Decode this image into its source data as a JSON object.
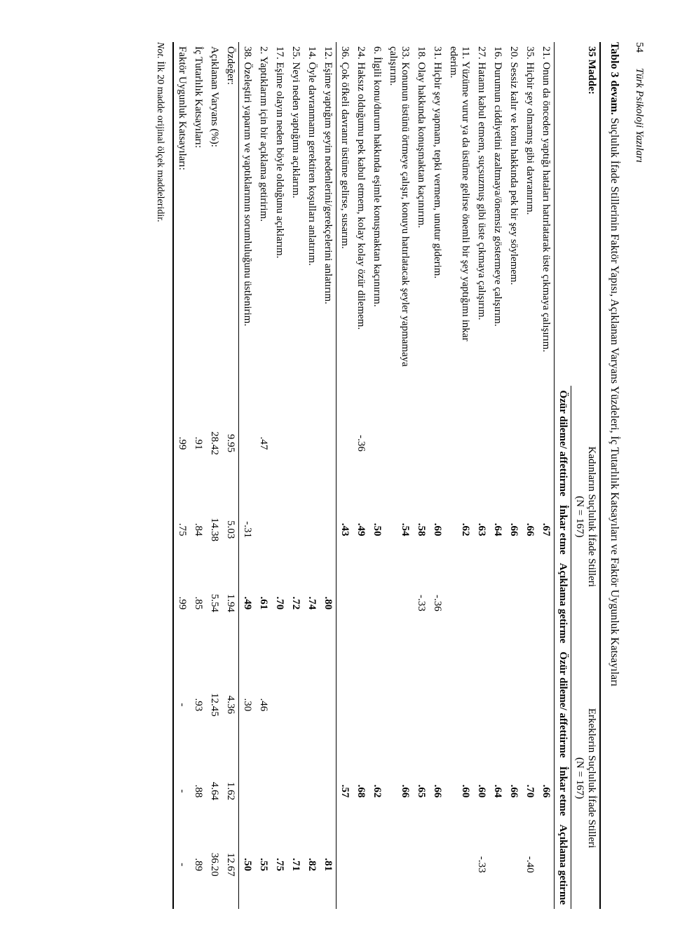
{
  "page": {
    "num": "54",
    "journal": "Türk Psikoloji Yazıları"
  },
  "caption": {
    "label": "Tablo 3 devam.",
    "text": "Suçluluk İfade Stillerinin Faktör Yapısı, Açıklanan Varyans Yüzdeleri, İç Tutarlılık Katsayıları ve Faktör Uygunluk Katsayıları"
  },
  "header": {
    "items_label": "35 Madde:",
    "group_women": "Kadınların Suçluluk İfade Stilleri",
    "group_women_n": "(N = 167)",
    "group_men": "Erkeklerin Suçluluk İfade Stilleri",
    "group_men_n": "(N = 167)",
    "c1": "Özür dileme/ affettirme",
    "c2": "İnkar etme",
    "c3": "Açıklama getirme",
    "c4": "Özür dileme/ affettirme",
    "c5": "İnkar etme",
    "c6": "Açıklama getirme"
  },
  "items_block1": [
    {
      "t": "21. Onun da önceden yaptığı hataları hatırlatarak üste çıkmaya çalışırım.",
      "v": [
        "",
        ".67",
        "",
        "",
        ".66",
        ""
      ],
      "b": [
        0,
        1,
        0,
        0,
        1,
        0
      ]
    },
    {
      "t": "35. Hiçbir şey olmamış gibi davranırım.",
      "v": [
        "",
        ".66",
        "",
        "",
        ".70",
        "-.40"
      ],
      "b": [
        0,
        1,
        0,
        0,
        1,
        0
      ]
    },
    {
      "t": "20. Sessiz kalır ve konu hakkında pek bir şey söylemem.",
      "v": [
        "",
        ".66",
        "",
        "",
        ".66",
        ""
      ],
      "b": [
        0,
        1,
        0,
        0,
        1,
        0
      ]
    },
    {
      "t": "16. Durumun ciddiyetini azaltmaya/önemsiz göstermeye çalışırım.",
      "v": [
        "",
        ".64",
        "",
        "",
        ".64",
        ""
      ],
      "b": [
        0,
        1,
        0,
        0,
        1,
        0
      ]
    },
    {
      "t": "27. Hatamı kabul etmem, suçsuzmuş gibi üste çıkmaya çalışırım.",
      "v": [
        "",
        ".63",
        "",
        "",
        ".60",
        "-.33"
      ],
      "b": [
        0,
        1,
        0,
        0,
        1,
        0
      ]
    },
    {
      "t": "11. Yüzüme vurur ya da üstüme gelirse önemli bir şey yaptığımı inkar ederim.",
      "v": [
        "",
        ".62",
        "",
        "",
        ".60",
        ""
      ],
      "b": [
        0,
        1,
        0,
        0,
        1,
        0
      ]
    },
    {
      "t": "31. Hiçbir şey yapmam, tepki vermem, unutur giderim.",
      "v": [
        "",
        ".60",
        "-.36",
        "",
        ".66",
        ""
      ],
      "b": [
        0,
        1,
        0,
        0,
        1,
        0
      ]
    },
    {
      "t": "18. Olay hakkında konuşmaktan kaçınırım.",
      "v": [
        "",
        ".58",
        "-.33",
        "",
        ".65",
        ""
      ],
      "b": [
        0,
        1,
        0,
        0,
        1,
        0
      ]
    },
    {
      "t": "33. Konunun üstünü örtmeye çalışır, konuyu hatırlatacak şeyler yapmamaya çalışırım.",
      "v": [
        "",
        ".54",
        "",
        "",
        ".66",
        ""
      ],
      "b": [
        0,
        1,
        0,
        0,
        1,
        0
      ]
    },
    {
      "t": "6. İlgili konu/durum hakkında eşimle konuşmaktan kaçınırım.",
      "v": [
        "",
        ".50",
        "",
        "",
        ".62",
        ""
      ],
      "b": [
        0,
        1,
        0,
        0,
        1,
        0
      ]
    },
    {
      "t": "24. Haksız olduğumu pek kabul etmem, kolay kolay özür dilemem.",
      "v": [
        "-.36",
        ".49",
        "",
        "",
        ".68",
        ""
      ],
      "b": [
        0,
        1,
        0,
        0,
        1,
        0
      ]
    },
    {
      "t": "36. Çok öfkeli davranır üstüme gelirse, susarım.",
      "v": [
        "",
        ".43",
        "",
        "",
        ".57",
        ""
      ],
      "b": [
        0,
        1,
        0,
        0,
        1,
        0
      ]
    }
  ],
  "items_block2": [
    {
      "t": "12. Eşime yaptığım şeyin nedenlerini/gerekçelerini anlatırım.",
      "v": [
        "",
        "",
        ".80",
        "",
        "",
        ".81"
      ],
      "b": [
        0,
        0,
        1,
        0,
        0,
        1
      ]
    },
    {
      "t": "14. Öyle davranmamı gerektiren koşulları anlatırım.",
      "v": [
        "",
        "",
        ".74",
        "",
        "",
        ".82"
      ],
      "b": [
        0,
        0,
        1,
        0,
        0,
        1
      ]
    },
    {
      "t": "25. Neyi neden yaptığımı açıklarım.",
      "v": [
        "",
        "",
        ".72",
        "",
        "",
        ".71"
      ],
      "b": [
        0,
        0,
        1,
        0,
        0,
        1
      ]
    },
    {
      "t": "17. Eşime olayın neden böyle olduğunu açıklarım.",
      "v": [
        "",
        "",
        ".70",
        "",
        "",
        ".75"
      ],
      "b": [
        0,
        0,
        1,
        0,
        0,
        1
      ]
    },
    {
      "t": "2. Yaptıklarım için bir açıklama getiririm.",
      "v": [
        ".47",
        "",
        ".61",
        ".46",
        "",
        ".55"
      ],
      "b": [
        0,
        0,
        1,
        0,
        0,
        1
      ]
    },
    {
      "t": "38. Özeleştiri yaparım ve yaptıklarımın sorumluluğunu üstlenirim.",
      "v": [
        "",
        "-.31",
        ".49",
        ".30",
        "",
        ".50"
      ],
      "b": [
        0,
        0,
        1,
        0,
        0,
        1
      ]
    }
  ],
  "summary": [
    {
      "t": "Özdeğer:",
      "v": [
        "9.95",
        "5.03",
        "1.94",
        "4.36",
        "1.62",
        "12.67"
      ]
    },
    {
      "t": "Açıklanan Varyans (%):",
      "v": [
        "28.42",
        "14.38",
        "5.54",
        "12.45",
        "4.64",
        "36.20"
      ]
    },
    {
      "t": "İç Tutarlılık Katsayıları:",
      "v": [
        ".91",
        ".84",
        ".85",
        ".93",
        ".88",
        ".89"
      ]
    },
    {
      "t": "Faktör Uygunluk Katsayıları:",
      "v": [
        ".99",
        ".75",
        ".99",
        "-",
        "-",
        "-"
      ]
    }
  ],
  "note": {
    "label": "Not.",
    "text": "İlk 20 madde orijinal ölçek maddeleridir."
  }
}
